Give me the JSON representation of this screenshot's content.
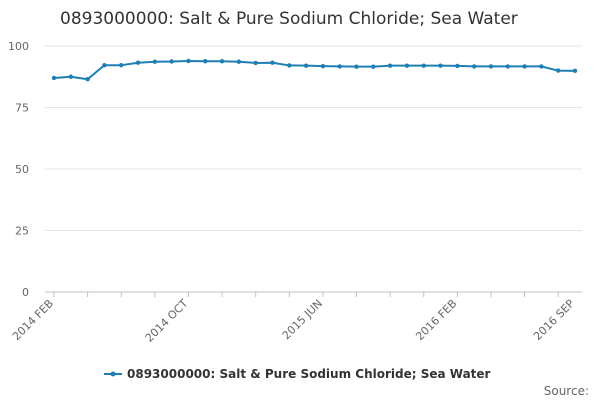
{
  "chart_data": {
    "type": "line",
    "title": "0893000000: Salt & Pure Sodium Chloride; Sea Water",
    "x": [
      "2014 FEB",
      "2014 MAR",
      "2014 APR",
      "2014 MAY",
      "2014 JUN",
      "2014 JUL",
      "2014 AUG",
      "2014 SEP",
      "2014 OCT",
      "2014 NOV",
      "2014 DEC",
      "2015 JAN",
      "2015 FEB",
      "2015 MAR",
      "2015 APR",
      "2015 MAY",
      "2015 JUN",
      "2015 JUL",
      "2015 AUG",
      "2015 SEP",
      "2015 OCT",
      "2015 NOV",
      "2015 DEC",
      "2016 JAN",
      "2016 FEB",
      "2016 MAR",
      "2016 APR",
      "2016 MAY",
      "2016 JUN",
      "2016 JUL",
      "2016 AUG",
      "2016 SEP"
    ],
    "x_tick_labels": [
      "2014 FEB",
      "2014 OCT",
      "2015 JUN",
      "2016 FEB",
      "2016 SEP"
    ],
    "series": [
      {
        "name": "0893000000: Salt & Pure Sodium Chloride; Sea Water",
        "color": "#1f7fb4",
        "values": [
          87.0,
          87.5,
          86.5,
          92.2,
          92.2,
          93.2,
          93.6,
          93.7,
          93.9,
          93.8,
          93.8,
          93.6,
          93.1,
          93.2,
          92.1,
          92.0,
          91.8,
          91.7,
          91.6,
          91.6,
          92.0,
          92.0,
          92.0,
          92.0,
          91.9,
          91.7,
          91.7,
          91.7,
          91.7,
          91.7,
          90.0,
          89.9
        ]
      }
    ],
    "y_ticks": [
      0,
      25,
      50,
      75,
      100
    ],
    "ylim": [
      0,
      100
    ],
    "xlabel": "",
    "ylabel": "",
    "grid": true,
    "legend_position": "bottom-center"
  },
  "footer": {
    "source_label": "Source:"
  }
}
